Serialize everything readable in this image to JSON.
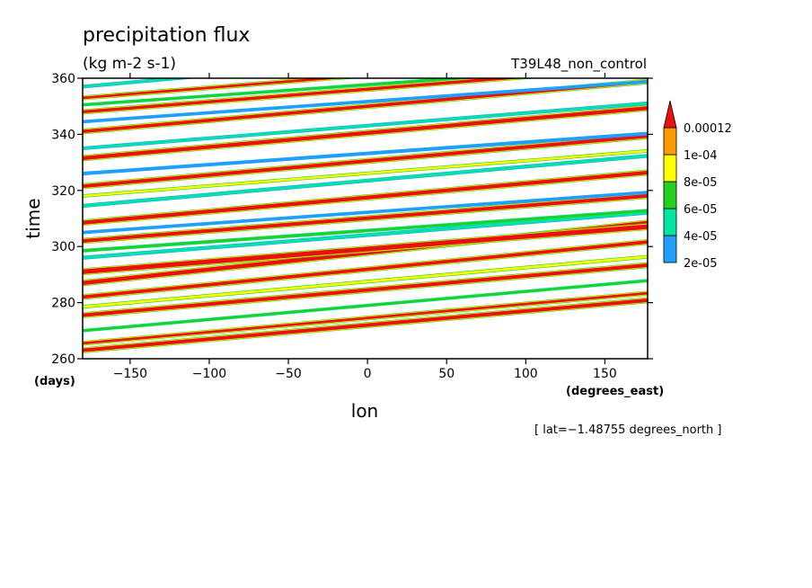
{
  "chart_data": {
    "type": "heatmap",
    "title": "precipitation flux",
    "subtitle": "(kg m-2 s-1)",
    "run_label": "T39L48_non_control",
    "xlabel": "lon",
    "ylabel": "time",
    "x_unit": "(degrees_east)",
    "y_unit": "(days)",
    "xlim": [
      -180,
      177
    ],
    "ylim": [
      260,
      360
    ],
    "x_ticks": [
      -150,
      -100,
      -50,
      0,
      50,
      100,
      150
    ],
    "y_ticks": [
      260,
      280,
      300,
      320,
      340,
      360
    ],
    "x_tick_labels": [
      "−150",
      "−100",
      "−50",
      "0",
      "50",
      "100",
      "150"
    ],
    "y_tick_labels": [
      "260",
      "280",
      "300",
      "320",
      "340",
      "360"
    ],
    "footnote": "[ lat=−1.48755 degrees_north ]",
    "colorbar": {
      "levels": [
        2e-05,
        4e-05,
        6e-05,
        8e-05,
        0.0001,
        0.00012
      ],
      "labels": [
        "2e-05",
        "4e-05",
        "6e-05",
        "8e-05",
        "1e-04",
        "0.00012"
      ],
      "colors": [
        "#1ea0ff",
        "#00e6a0",
        "#22d022",
        "#ffff00",
        "#ff9a00",
        "#e81010"
      ],
      "extend": "max"
    },
    "bands": [
      {
        "t0": 263.0,
        "slope": 0.05,
        "w": 1.2,
        "level": 5
      },
      {
        "t0": 265.5,
        "slope": 0.05,
        "w": 0.8,
        "level": 5
      },
      {
        "t0": 275.5,
        "slope": 0.05,
        "w": 1.2,
        "level": 5
      },
      {
        "t0": 282.0,
        "slope": 0.055,
        "w": 1.1,
        "level": 5
      },
      {
        "t0": 287.0,
        "slope": 0.06,
        "w": 1.4,
        "level": 5
      },
      {
        "t0": 291.0,
        "slope": 0.045,
        "w": 1.6,
        "level": 5
      },
      {
        "t0": 302.0,
        "slope": 0.045,
        "w": 1.2,
        "level": 5
      },
      {
        "t0": 308.5,
        "slope": 0.05,
        "w": 1.3,
        "level": 5
      },
      {
        "t0": 321.5,
        "slope": 0.05,
        "w": 1.2,
        "level": 5
      },
      {
        "t0": 331.5,
        "slope": 0.05,
        "w": 1.3,
        "level": 5
      },
      {
        "t0": 341.0,
        "slope": 0.05,
        "w": 1.1,
        "level": 5
      },
      {
        "t0": 348.0,
        "slope": 0.045,
        "w": 1.0,
        "level": 5
      },
      {
        "t0": 353.0,
        "slope": 0.045,
        "w": 0.8,
        "level": 5
      },
      {
        "t0": 270.0,
        "slope": 0.05,
        "w": 0.8,
        "level": 2
      },
      {
        "t0": 278.5,
        "slope": 0.05,
        "w": 0.9,
        "level": 3
      },
      {
        "t0": 296.0,
        "slope": 0.045,
        "w": 1.0,
        "level": 1
      },
      {
        "t0": 298.5,
        "slope": 0.04,
        "w": 0.9,
        "level": 2
      },
      {
        "t0": 305.0,
        "slope": 0.04,
        "w": 0.8,
        "level": 0
      },
      {
        "t0": 314.5,
        "slope": 0.05,
        "w": 1.0,
        "level": 1
      },
      {
        "t0": 318.0,
        "slope": 0.045,
        "w": 0.8,
        "level": 3
      },
      {
        "t0": 326.0,
        "slope": 0.04,
        "w": 0.9,
        "level": 0
      },
      {
        "t0": 335.0,
        "slope": 0.045,
        "w": 0.9,
        "level": 1
      },
      {
        "t0": 344.5,
        "slope": 0.04,
        "w": 0.8,
        "level": 0
      },
      {
        "t0": 350.5,
        "slope": 0.04,
        "w": 0.8,
        "level": 2
      },
      {
        "t0": 357.0,
        "slope": 0.05,
        "w": 0.9,
        "level": 1
      }
    ]
  }
}
